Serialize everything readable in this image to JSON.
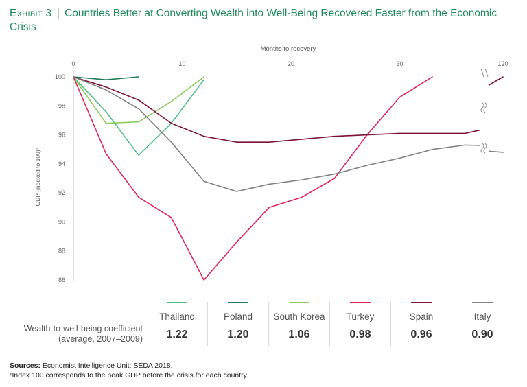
{
  "header": {
    "exhibit": "Exhibit 3",
    "separator": "|",
    "title": "Countries Better at Converting Wealth into Well-Being Recovered Faster from the Economic Crisis"
  },
  "chart_data": {
    "type": "line",
    "title": "Countries Better at Converting Wealth into Well-Being Recovered Faster from the Economic Crisis",
    "xlabel": "Months to recovery",
    "ylabel": "GDP (indexed to 100)¹",
    "x_ticks": [
      "0",
      "10",
      "20",
      "30",
      "120"
    ],
    "y_ticks": [
      "100",
      "98",
      "96",
      "94",
      "92",
      "90",
      "88",
      "86"
    ],
    "xlim": [
      0,
      39
    ],
    "x_axis_break": "between 32 and 120 months",
    "ylim": [
      86,
      100
    ],
    "series": [
      {
        "name": "Thailand",
        "color": "#4dbf86",
        "x": [
          0,
          3,
          6,
          9,
          12
        ],
        "values": [
          100,
          97.6,
          94.6,
          96.8,
          99.8
        ]
      },
      {
        "name": "Poland",
        "color": "#1e7c55",
        "x": [
          0,
          3,
          6
        ],
        "values": [
          100,
          99.8,
          100
        ]
      },
      {
        "name": "South Korea",
        "color": "#8ccc5c",
        "x": [
          0,
          3,
          6,
          9,
          12
        ],
        "values": [
          100,
          96.8,
          96.9,
          98.3,
          100
        ]
      },
      {
        "name": "Turkey",
        "color": "#e0245a",
        "x": [
          0,
          3,
          6,
          9,
          12,
          15,
          18,
          21,
          24,
          27,
          30,
          33
        ],
        "values": [
          100,
          94.7,
          91.7,
          90.3,
          86,
          88.6,
          91,
          91.7,
          93,
          96,
          98.6,
          100
        ]
      },
      {
        "name": "Spain",
        "color": "#7d1235",
        "x": [
          0,
          3,
          6,
          9,
          12,
          15,
          18,
          21,
          24,
          27,
          30,
          33,
          36,
          120
        ],
        "values": [
          100,
          99.3,
          98.4,
          96.8,
          95.9,
          95.5,
          95.5,
          95.7,
          95.9,
          96,
          96.1,
          96.1,
          96.1,
          100
        ]
      },
      {
        "name": "Italy",
        "color": "#808080",
        "x": [
          0,
          3,
          6,
          9,
          12,
          15,
          18,
          21,
          24,
          27,
          30,
          33,
          36,
          120
        ],
        "values": [
          100,
          99.1,
          97.8,
          95.5,
          92.8,
          92.1,
          92.6,
          92.9,
          93.3,
          93.9,
          94.4,
          95,
          95.3,
          94.8
        ]
      }
    ]
  },
  "legend": {
    "coefficient_label_line1": "Wealth-to-well-being coefficient",
    "coefficient_label_line2": "(average, 2007–2009)",
    "items": [
      {
        "name": "Thailand",
        "color": "#4dbf86",
        "value": "1.22"
      },
      {
        "name": "Poland",
        "color": "#1e7c55",
        "value": "1.20"
      },
      {
        "name": "South Korea",
        "color": "#8ccc5c",
        "value": "1.06"
      },
      {
        "name": "Turkey",
        "color": "#e0245a",
        "value": "0.98"
      },
      {
        "name": "Spain",
        "color": "#7d1235",
        "value": "0.96"
      },
      {
        "name": "Italy",
        "color": "#808080",
        "value": "0.90"
      }
    ]
  },
  "footer": {
    "sources_label": "Sources:",
    "sources_text": "Economist Intelligence Unit; SEDA 2018.",
    "note_mark": "¹",
    "note_text": "Index 100 corresponds to the peak GDP before the crisis for each country."
  }
}
